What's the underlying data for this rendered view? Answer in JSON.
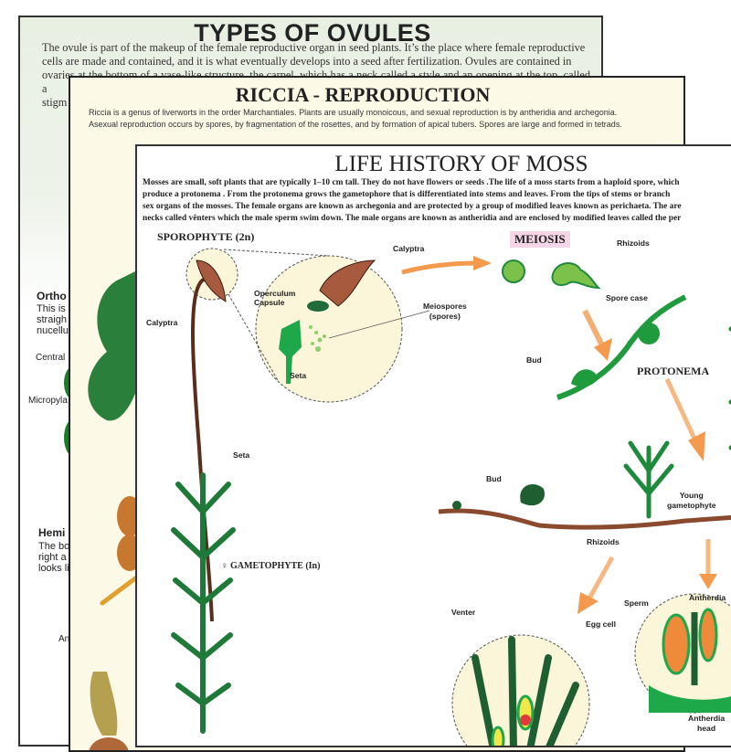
{
  "posters": {
    "ovules": {
      "title": "TYPES OF OVULES",
      "paragraph": [
        "The ovule is part of the makeup of the female reproductive organ in seed plants. It’s the place where female reproductive",
        "cells are made and contained, and it is what eventually develops into a seed after fertilization. Ovules are contained in",
        "ovaries at the bottom of a vase-like structure, the carpel, which has a neck called a style and an opening at the top, called a",
        "stigm"
      ],
      "orthotropous": {
        "heading": "Ortho",
        "lines": [
          "This is",
          "straigh",
          "nucellu"
        ]
      },
      "labels": {
        "central": "Central",
        "micropylar": "Micropyla",
        "anatropous": "An"
      },
      "hemitropous": {
        "heading": "Hemi",
        "lines": [
          "The bo",
          "right a",
          "looks li"
        ]
      }
    },
    "riccia": {
      "title": "RICCIA - REPRODUCTION",
      "paragraph": [
        "Riccia is a genus of liverworts in the order Marchantiales. Plants are usually monoicous, and sexual reproduction is by antheridia and archegonia.",
        "Asexual reproduction occurs by spores, by fragmentation of the rosettes, and by formation of apical tubers. Spores are large and formed in tetrads."
      ]
    },
    "moss": {
      "title": "LIFE HISTORY OF MOSS",
      "paragraph": [
        "Mosses are small, soft plants that are typically 1–10 cm  tall. They do not have flowers or seeds .The life of a moss starts from a haploid spore, which",
        "produce a protonema . From the protonema grows the gametophore that is differentiated into stems and leaves. From the tips of stems or branch",
        "sex organs of the mosses. The female organs are known as archegonia  and are protected by a group of modified leaves known as perichaeta. The are",
        "necks called vênters which the male sperm swim down. The male organs are known as antheridia  and are enclosed by modified leaves called the per"
      ],
      "labels": {
        "sporophyte": "SPOROPHYTE (2n)",
        "calyptra_top": "Calyptra",
        "calyptra_left": "Calyptra",
        "operculum": "Operculum",
        "capsule": "Capsule",
        "meiospores": "Meiospores",
        "spores": "(spores)",
        "seta_inner": "Seta",
        "seta_outer": "Seta",
        "meiosis": "MEIOSIS",
        "rhizoids_top": "Rhizoids",
        "spore_case": "Spore case",
        "bud_protonema": "Bud",
        "protonema": "PROTONEMA",
        "bud_stem": "Bud",
        "young": "Young",
        "gametophyte_small": "gametophyte",
        "rhizoids_bottom": "Rhizoids",
        "gametophyte": "♀ GAMETOPHYTE (In)",
        "sperm": "Sperm",
        "antherdia": "Antherdia",
        "venter": "Venter",
        "egg_cell": "Egg cell",
        "antherdia_head1": "Antherdia",
        "antherdia_head2": "head"
      }
    }
  },
  "colors": {
    "meiosis_bg": "#f6d6e6",
    "arrow": "#f39a4e",
    "moss_green": "#1f8a3c",
    "brown": "#8a4a2e",
    "cream": "#fbf6da"
  }
}
